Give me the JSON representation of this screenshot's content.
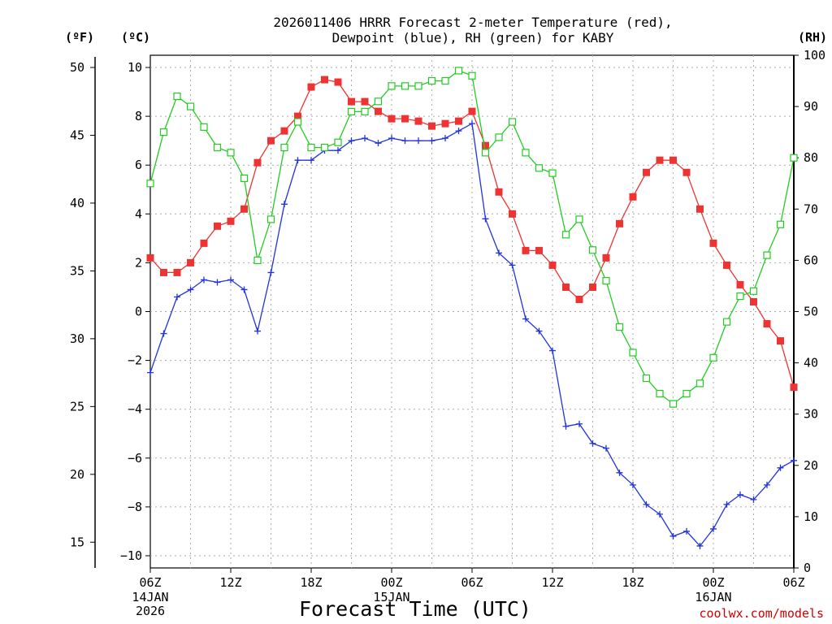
{
  "chart_data": {
    "type": "line",
    "title_line1": "2026011406 HRRR Forecast 2-meter Temperature (red),",
    "title_line2": "Dewpoint (blue), RH (green) for KABY",
    "xlabel": "Forecast Time (UTC)",
    "credit": "coolwx.com/models",
    "units": {
      "fahrenheit": "(ºF)",
      "celsius": "(ºC)",
      "rh": "(RH)"
    },
    "x_range": [
      0,
      48
    ],
    "y_celsius_range": [
      -10.5,
      10.5
    ],
    "y_rh_range": [
      0,
      100
    ],
    "x_ticks": [
      {
        "hour": 0,
        "label": "06Z",
        "date1": "14JAN",
        "date2": "2026"
      },
      {
        "hour": 6,
        "label": "12Z"
      },
      {
        "hour": 12,
        "label": "18Z"
      },
      {
        "hour": 18,
        "label": "00Z",
        "date1": "15JAN"
      },
      {
        "hour": 24,
        "label": "06Z"
      },
      {
        "hour": 30,
        "label": "12Z"
      },
      {
        "hour": 36,
        "label": "18Z"
      },
      {
        "hour": 42,
        "label": "00Z",
        "date1": "16JAN"
      },
      {
        "hour": 48,
        "label": "06Z"
      }
    ],
    "y_celsius_ticks": [
      {
        "value": 10,
        "label": "10"
      },
      {
        "value": 8,
        "label": "8"
      },
      {
        "value": 6,
        "label": "6"
      },
      {
        "value": 4,
        "label": "4"
      },
      {
        "value": 2,
        "label": "2"
      },
      {
        "value": 0,
        "label": "0"
      },
      {
        "value": -2,
        "label": "−2"
      },
      {
        "value": -4,
        "label": "−4"
      },
      {
        "value": -6,
        "label": "−6"
      },
      {
        "value": -8,
        "label": "−8"
      },
      {
        "value": -10,
        "label": "−10"
      }
    ],
    "y_fahrenheit_ticks": [
      {
        "value": 50,
        "label": "50"
      },
      {
        "value": 45,
        "label": "45"
      },
      {
        "value": 40,
        "label": "40"
      },
      {
        "value": 35,
        "label": "35"
      },
      {
        "value": 30,
        "label": "30"
      },
      {
        "value": 25,
        "label": "25"
      },
      {
        "value": 20,
        "label": "20"
      },
      {
        "value": 15,
        "label": "15"
      }
    ],
    "y_rh_ticks": [
      {
        "value": 100,
        "label": "100"
      },
      {
        "value": 90,
        "label": "90"
      },
      {
        "value": 80,
        "label": "80"
      },
      {
        "value": 70,
        "label": "70"
      },
      {
        "value": 60,
        "label": "60"
      },
      {
        "value": 50,
        "label": "50"
      },
      {
        "value": 40,
        "label": "40"
      },
      {
        "value": 30,
        "label": "30"
      },
      {
        "value": 20,
        "label": "20"
      },
      {
        "value": 10,
        "label": "10"
      },
      {
        "value": 0,
        "label": "0"
      }
    ],
    "series": [
      {
        "name": "2-meter Temperature",
        "axis": "celsius",
        "color": "#ee3333",
        "marker": "filled-square",
        "values": [
          2.2,
          1.6,
          1.6,
          2.0,
          2.8,
          3.5,
          3.7,
          4.2,
          6.1,
          7.0,
          7.4,
          8.0,
          9.2,
          9.5,
          9.4,
          8.6,
          8.6,
          8.2,
          7.9,
          7.9,
          7.8,
          7.6,
          7.7,
          7.8,
          8.2,
          6.8,
          4.9,
          4.0,
          2.5,
          2.5,
          1.9,
          1.0,
          0.5,
          1.0,
          2.2,
          3.6,
          4.7,
          5.7,
          6.2,
          6.2,
          5.7,
          4.2,
          2.8,
          1.9,
          1.1,
          0.4,
          -0.5,
          -1.2,
          -3.1
        ]
      },
      {
        "name": "Dewpoint",
        "axis": "celsius",
        "color": "#2233dd",
        "marker": "plus",
        "values": [
          -2.5,
          -0.9,
          0.6,
          0.9,
          1.3,
          1.2,
          1.3,
          0.9,
          -0.8,
          1.6,
          4.4,
          6.2,
          6.2,
          6.6,
          6.6,
          7.0,
          7.1,
          6.9,
          7.1,
          7.0,
          7.0,
          7.0,
          7.1,
          7.4,
          7.7,
          3.8,
          2.4,
          1.9,
          -0.3,
          -0.8,
          -1.6,
          -4.7,
          -4.6,
          -5.4,
          -5.6,
          -6.6,
          -7.1,
          -7.9,
          -8.3,
          -9.2,
          -9.0,
          -9.6,
          -8.9,
          -7.9,
          -7.5,
          -7.7,
          -7.1,
          -6.4,
          -6.1
        ]
      },
      {
        "name": "RH",
        "axis": "rh",
        "color": "#22cc22",
        "marker": "open-square",
        "values": [
          75,
          85,
          92,
          90,
          86,
          82,
          81,
          76,
          60,
          68,
          82,
          87,
          82,
          82,
          83,
          89,
          89,
          91,
          94,
          94,
          94,
          95,
          95,
          97,
          96,
          81,
          84,
          87,
          81,
          78,
          77,
          65,
          68,
          62,
          56,
          47,
          42,
          37,
          34,
          32,
          34,
          36,
          41,
          48,
          53,
          54,
          61,
          67,
          80
        ]
      }
    ]
  }
}
